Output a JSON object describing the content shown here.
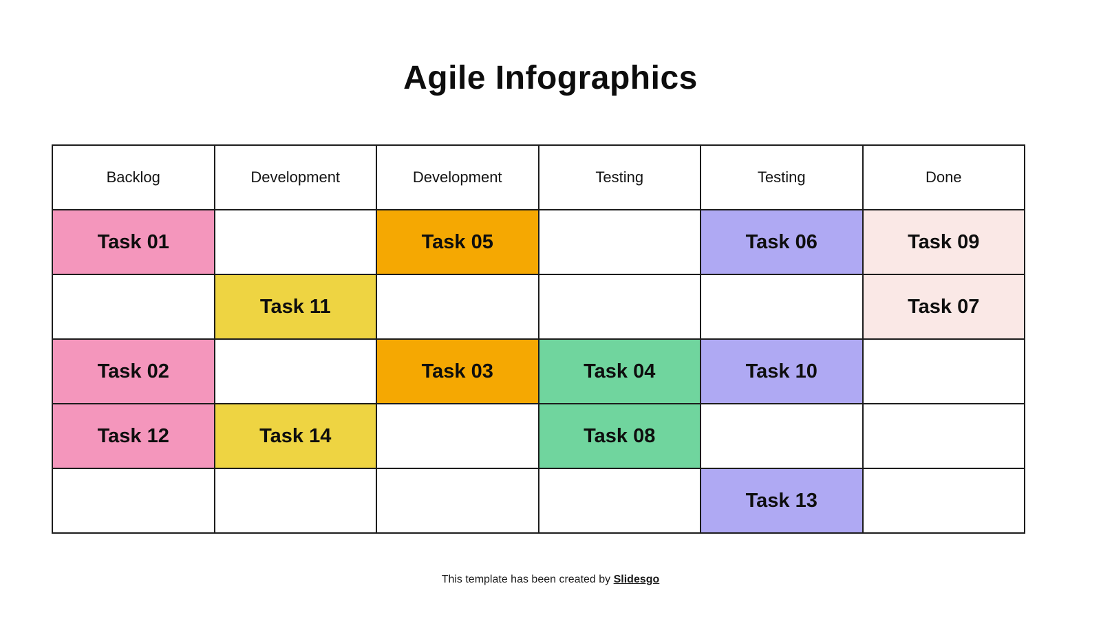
{
  "title": "Agile Infographics",
  "colors": {
    "pink": "#F496BC",
    "orange": "#F5A802",
    "yellow": "#EED442",
    "green": "#70D59E",
    "lavender": "#AFA9F3",
    "blush": "#FAE8E6",
    "border": "#1c1c1c",
    "text": "#0e0e0e"
  },
  "board": {
    "columns": [
      "Backlog",
      "Development",
      "Development",
      "Testing",
      "Testing",
      "Done"
    ],
    "rows": [
      [
        {
          "label": "Task 01",
          "color": "pink"
        },
        null,
        {
          "label": "Task 05",
          "color": "orange"
        },
        null,
        {
          "label": "Task 06",
          "color": "lavender"
        },
        {
          "label": "Task 09",
          "color": "blush"
        }
      ],
      [
        null,
        {
          "label": "Task 11",
          "color": "yellow"
        },
        null,
        null,
        null,
        {
          "label": "Task 07",
          "color": "blush"
        }
      ],
      [
        {
          "label": "Task 02",
          "color": "pink"
        },
        null,
        {
          "label": "Task 03",
          "color": "orange"
        },
        {
          "label": "Task 04",
          "color": "green"
        },
        {
          "label": "Task 10",
          "color": "lavender"
        },
        null
      ],
      [
        {
          "label": "Task 12",
          "color": "pink"
        },
        {
          "label": "Task 14",
          "color": "yellow"
        },
        null,
        {
          "label": "Task 08",
          "color": "green"
        },
        null,
        null
      ],
      [
        null,
        null,
        null,
        null,
        {
          "label": "Task 13",
          "color": "lavender"
        },
        null
      ]
    ]
  },
  "footer": {
    "prefix": "This template has been created by ",
    "link": "Slidesgo"
  }
}
